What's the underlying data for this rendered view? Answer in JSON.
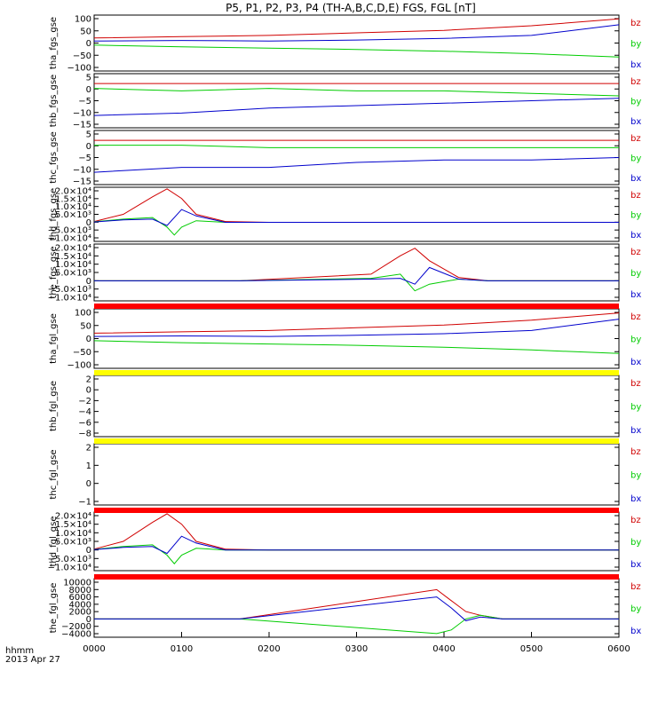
{
  "title": "P5, P1, P2, P3, P4 (TH-A,B,C,D,E) FGS, FGL [nT]",
  "colors": {
    "bz": "#d00000",
    "by": "#00cc00",
    "bx": "#0000cc",
    "yellow": "#ffff00",
    "red_bar": "#ff0000"
  },
  "footer": {
    "label1": "hhmm",
    "label2": "2013 Apr 27"
  },
  "x_ticks": [
    "0000",
    "0100",
    "0200",
    "0300",
    "0400",
    "0500",
    "0600"
  ],
  "chart_data": [
    {
      "type": "line",
      "ylabel": "tha_fgs_gse",
      "ylim": [
        -110,
        110
      ],
      "yticks": [
        "100",
        "50",
        "0",
        "−50",
        "−100"
      ],
      "legend": [
        "bz",
        "by",
        "bx"
      ],
      "series": [
        {
          "name": "bz",
          "x": [
            0,
            60,
            120,
            180,
            240,
            300,
            360
          ],
          "values": [
            20,
            25,
            30,
            40,
            50,
            68,
            95
          ]
        },
        {
          "name": "by",
          "x": [
            0,
            60,
            120,
            180,
            240,
            300,
            360
          ],
          "values": [
            -8,
            -15,
            -20,
            -25,
            -32,
            -42,
            -55
          ]
        },
        {
          "name": "bx",
          "x": [
            0,
            60,
            120,
            180,
            240,
            300,
            360
          ],
          "values": [
            8,
            10,
            8,
            12,
            18,
            30,
            72
          ]
        }
      ]
    },
    {
      "type": "line",
      "ylabel": "thb_fgs_gse",
      "ylim": [
        -15,
        7
      ],
      "yticks": [
        "5",
        "0",
        "−5",
        "−10",
        "−15"
      ],
      "legend": [
        "bz",
        "by",
        "bx"
      ],
      "series": [
        {
          "name": "bz",
          "x": [
            0,
            60,
            120,
            180,
            240,
            300,
            360
          ],
          "values": [
            3,
            3,
            3,
            3,
            3,
            3,
            3
          ]
        },
        {
          "name": "by",
          "x": [
            0,
            60,
            120,
            180,
            240,
            300,
            360
          ],
          "values": [
            1,
            0,
            1,
            0,
            0,
            -1,
            -2
          ]
        },
        {
          "name": "bx",
          "x": [
            0,
            60,
            120,
            180,
            240,
            300,
            360
          ],
          "values": [
            -10,
            -9,
            -7,
            -6,
            -5,
            -4,
            -3
          ]
        }
      ]
    },
    {
      "type": "line",
      "ylabel": "thc_fgs_gse",
      "ylim": [
        -15,
        7
      ],
      "yticks": [
        "5",
        "0",
        "−5",
        "−10",
        "−15"
      ],
      "legend": [
        "bz",
        "by",
        "bx"
      ],
      "series": [
        {
          "name": "bz",
          "x": [
            0,
            60,
            120,
            180,
            240,
            300,
            360
          ],
          "values": [
            3,
            3,
            3,
            3,
            3,
            3,
            3
          ]
        },
        {
          "name": "by",
          "x": [
            0,
            60,
            120,
            180,
            240,
            300,
            360
          ],
          "values": [
            1,
            1,
            0,
            0,
            0,
            0,
            0
          ]
        },
        {
          "name": "bx",
          "x": [
            0,
            60,
            120,
            180,
            240,
            300,
            360
          ],
          "values": [
            -10,
            -8,
            -8,
            -6,
            -5,
            -5,
            -4
          ]
        }
      ]
    },
    {
      "type": "line",
      "ylabel": "thd_fgs_gse",
      "ylim": [
        -12000,
        22000
      ],
      "yticks": [
        "2.0×10⁴",
        "1.5×10⁴",
        "1.0×10⁴",
        "5.0×10³",
        "0",
        "−5.0×10³",
        "−1.0×10⁴"
      ],
      "legend": [
        "bz",
        "by",
        "bx"
      ],
      "series": [
        {
          "name": "bz",
          "x": [
            0,
            20,
            40,
            50,
            60,
            70,
            90,
            120,
            360
          ],
          "values": [
            500,
            5000,
            16000,
            21000,
            15000,
            5000,
            500,
            0,
            0
          ]
        },
        {
          "name": "by",
          "x": [
            0,
            20,
            40,
            50,
            55,
            60,
            70,
            90,
            120,
            360
          ],
          "values": [
            300,
            2000,
            3000,
            -3000,
            -8000,
            -3000,
            1000,
            0,
            0,
            0
          ]
        },
        {
          "name": "bx",
          "x": [
            0,
            20,
            40,
            50,
            60,
            70,
            90,
            120,
            360
          ],
          "values": [
            200,
            1500,
            2000,
            -2000,
            8000,
            4000,
            0,
            0,
            0
          ]
        }
      ]
    },
    {
      "type": "line",
      "ylabel": "the_fgs_gse",
      "ylim": [
        -12000,
        22000
      ],
      "yticks": [
        "2.0×10⁴",
        "1.5×10⁴",
        "1.0×10⁴",
        "5.0×10³",
        "0",
        "−5.0×10³",
        "−1.0×10⁴"
      ],
      "legend": [
        "bz",
        "by",
        "bx"
      ],
      "series": [
        {
          "name": "bz",
          "x": [
            0,
            100,
            190,
            210,
            220,
            230,
            250,
            270,
            360
          ],
          "values": [
            0,
            0,
            4000,
            15000,
            19500,
            12000,
            2000,
            0,
            0
          ]
        },
        {
          "name": "by",
          "x": [
            0,
            100,
            190,
            210,
            220,
            230,
            250,
            270,
            360
          ],
          "values": [
            0,
            0,
            1500,
            4000,
            -6000,
            -2000,
            1000,
            0,
            0
          ]
        },
        {
          "name": "bx",
          "x": [
            0,
            100,
            190,
            210,
            220,
            230,
            250,
            270,
            360
          ],
          "values": [
            0,
            0,
            1000,
            1500,
            -2000,
            8000,
            1000,
            0,
            0
          ]
        }
      ]
    },
    {
      "type": "line",
      "ylabel": "tha_fgl_gse",
      "ylim": [
        -110,
        110
      ],
      "yticks": [
        "100",
        "50",
        "0",
        "−50",
        "−100"
      ],
      "legend": [
        "bz",
        "by",
        "bx"
      ],
      "series": [
        {
          "name": "bz",
          "x": [
            0,
            60,
            120,
            180,
            240,
            300,
            360
          ],
          "values": [
            20,
            25,
            30,
            40,
            50,
            68,
            95
          ]
        },
        {
          "name": "by",
          "x": [
            0,
            60,
            120,
            180,
            240,
            300,
            360
          ],
          "values": [
            -8,
            -15,
            -20,
            -25,
            -32,
            -42,
            -55
          ]
        },
        {
          "name": "bx",
          "x": [
            0,
            60,
            120,
            180,
            240,
            300,
            360
          ],
          "values": [
            8,
            10,
            8,
            12,
            18,
            30,
            72
          ]
        }
      ]
    },
    {
      "type": "line",
      "ylabel": "thb_fgl_gse",
      "ylim": [
        -9,
        3
      ],
      "yticks": [
        "2",
        "0",
        "−2",
        "−4",
        "−6",
        "−8"
      ],
      "legend": [
        "bz",
        "by",
        "bx"
      ],
      "series": []
    },
    {
      "type": "line",
      "ylabel": "thc_fgl_gse",
      "ylim": [
        -1.5,
        2.5
      ],
      "yticks": [
        "2",
        "1",
        "0",
        "−1"
      ],
      "legend": [
        "bz",
        "by",
        "bx"
      ],
      "series": []
    },
    {
      "type": "line",
      "ylabel": "thd_fgl_gse",
      "ylim": [
        -12000,
        22000
      ],
      "yticks": [
        "2.0×10⁴",
        "1.5×10⁴",
        "1.0×10⁴",
        "5.0×10³",
        "0",
        "−5.0×10³",
        "−1.0×10⁴"
      ],
      "legend": [
        "bz",
        "by",
        "bx"
      ],
      "series": [
        {
          "name": "bz",
          "x": [
            0,
            20,
            40,
            50,
            60,
            70,
            90,
            120,
            360
          ],
          "values": [
            500,
            5000,
            16000,
            21000,
            15000,
            5000,
            500,
            0,
            0
          ]
        },
        {
          "name": "by",
          "x": [
            0,
            20,
            40,
            50,
            55,
            60,
            70,
            90,
            120,
            360
          ],
          "values": [
            300,
            2000,
            3000,
            -3000,
            -8000,
            -3000,
            1000,
            0,
            0,
            0
          ]
        },
        {
          "name": "bx",
          "x": [
            0,
            20,
            40,
            50,
            60,
            70,
            90,
            120,
            360
          ],
          "values": [
            200,
            1500,
            2000,
            -2000,
            8000,
            4000,
            0,
            0,
            0
          ]
        }
      ]
    },
    {
      "type": "line",
      "ylabel": "the_fgl_gse",
      "ylim": [
        -5000,
        11000
      ],
      "yticks": [
        "10000",
        "8000",
        "6000",
        "4000",
        "2000",
        "0",
        "−2000",
        "−4000"
      ],
      "legend": [
        "bz",
        "by",
        "bx"
      ],
      "series": [
        {
          "name": "bz",
          "x": [
            0,
            100,
            235,
            245,
            255,
            265,
            280,
            300,
            360
          ],
          "values": [
            0,
            0,
            8000,
            5000,
            2000,
            1000,
            0,
            0,
            0
          ]
        },
        {
          "name": "by",
          "x": [
            0,
            100,
            235,
            245,
            255,
            265,
            280,
            300,
            360
          ],
          "values": [
            0,
            0,
            -4000,
            -3000,
            0,
            1000,
            0,
            0,
            0
          ]
        },
        {
          "name": "bx",
          "x": [
            0,
            100,
            235,
            245,
            255,
            265,
            280,
            300,
            360
          ],
          "values": [
            0,
            0,
            6000,
            3000,
            -500,
            500,
            0,
            0,
            0
          ]
        }
      ]
    }
  ]
}
